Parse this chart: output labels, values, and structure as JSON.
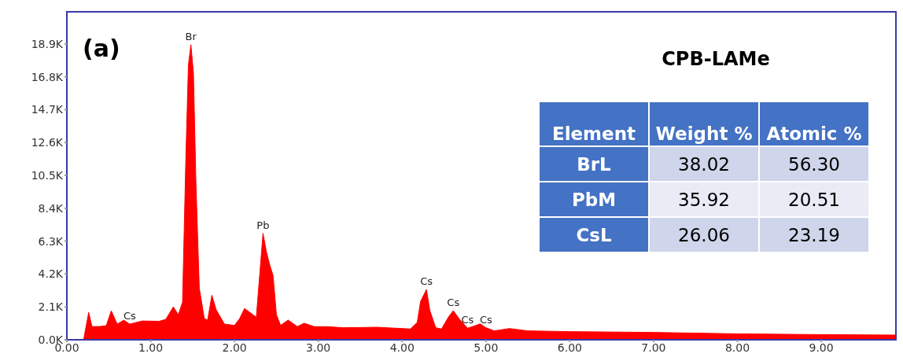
{
  "chart_data": [
    {
      "type": "area",
      "title": "CPB-LAMe",
      "annotations": [
        "(a)",
        {
          "text": "Br",
          "x": 1.48,
          "y": 18850
        },
        {
          "text": "Pb",
          "x": 2.34,
          "y": 6800
        },
        {
          "text": "Cs",
          "x": 0.75,
          "y": 1000
        },
        {
          "text": "Cs",
          "x": 4.29,
          "y": 3210
        },
        {
          "text": "Cs",
          "x": 4.61,
          "y": 1860
        },
        {
          "text": "Cs",
          "x": 5.0,
          "y": 770
        },
        {
          "text": "Cs",
          "x": 4.78,
          "y": 740
        }
      ],
      "x": [
        0.2,
        0.26,
        0.3,
        0.4,
        0.47,
        0.53,
        0.6,
        0.68,
        0.75,
        0.9,
        1.1,
        1.18,
        1.27,
        1.33,
        1.38,
        1.42,
        1.45,
        1.48,
        1.51,
        1.54,
        1.58,
        1.64,
        1.68,
        1.73,
        1.78,
        1.88,
        2.0,
        2.06,
        2.12,
        2.2,
        2.26,
        2.3,
        2.34,
        2.38,
        2.42,
        2.46,
        2.5,
        2.55,
        2.64,
        2.75,
        2.83,
        2.95,
        3.1,
        3.3,
        3.7,
        4.1,
        4.18,
        4.22,
        4.29,
        4.33,
        4.4,
        4.47,
        4.55,
        4.61,
        4.68,
        4.78,
        4.85,
        4.93,
        5.0,
        5.1,
        5.28,
        5.5,
        6.0,
        7.0,
        8.0,
        9.0,
        9.9
      ],
      "series": [
        {
          "color": "#ff0000",
          "values": [
            0,
            1750,
            840,
            850,
            900,
            1850,
            1000,
            1250,
            1000,
            1200,
            1180,
            1300,
            2100,
            1600,
            2400,
            11700,
            17550,
            18850,
            17050,
            10000,
            3300,
            1350,
            1260,
            2850,
            1930,
            1000,
            920,
            1340,
            2000,
            1680,
            1430,
            4100,
            6800,
            5630,
            4790,
            4100,
            1600,
            920,
            1260,
            840,
            1060,
            840,
            840,
            770,
            800,
            690,
            1110,
            2450,
            3210,
            1880,
            770,
            690,
            1430,
            1860,
            1340,
            740,
            860,
            1020,
            770,
            570,
            720,
            570,
            520,
            470,
            380,
            330,
            300
          ]
        }
      ],
      "xlim": [
        0,
        9.9
      ],
      "xticks": [
        {
          "value": 0,
          "label": "0.00"
        },
        {
          "value": 1,
          "label": "1.00"
        },
        {
          "value": 2,
          "label": "2.00"
        },
        {
          "value": 3,
          "label": "3.00"
        },
        {
          "value": 4,
          "label": "4.00"
        },
        {
          "value": 5,
          "label": "5.00"
        },
        {
          "value": 6,
          "label": "6.00"
        },
        {
          "value": 7,
          "label": "7.00"
        },
        {
          "value": 8,
          "label": "8.00"
        },
        {
          "value": 9,
          "label": "9.00"
        }
      ],
      "ylim": [
        0,
        21000
      ],
      "yticks": [
        {
          "value": 0,
          "label": "0.0K"
        },
        {
          "value": 2100,
          "label": "2.1K"
        },
        {
          "value": 4200,
          "label": "4.2K"
        },
        {
          "value": 6300,
          "label": "6.3K"
        },
        {
          "value": 8400,
          "label": "8.4K"
        },
        {
          "value": 10500,
          "label": "10.5K"
        },
        {
          "value": 12600,
          "label": "12.6K"
        },
        {
          "value": 14700,
          "label": "14.7K"
        },
        {
          "value": 16800,
          "label": "16.8K"
        },
        {
          "value": 18900,
          "label": "18.9K"
        }
      ],
      "grid": false,
      "legend": false
    },
    {
      "type": "other",
      "annotations": [
        "Element",
        "Weight %",
        "Atomic %",
        "BrL",
        "38.02",
        "56.30",
        "PbM",
        "35.92",
        "20.51",
        "CsL",
        "26.06",
        "23.19"
      ]
    }
  ]
}
